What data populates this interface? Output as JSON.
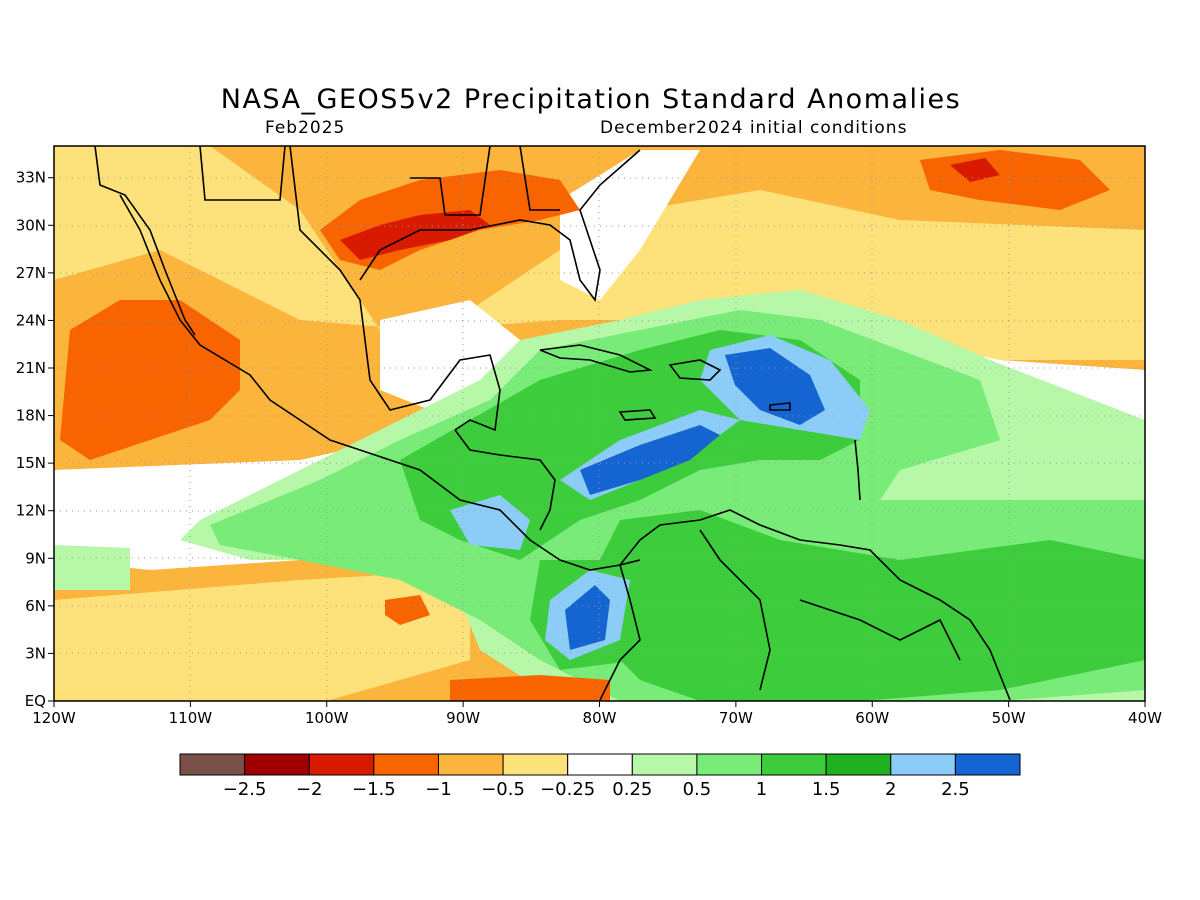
{
  "title": "NASA_GEOS5v2 Precipitation Standard Anomalies",
  "subtitle_left": "Feb2025",
  "subtitle_right": "December2024 initial conditions",
  "map": {
    "lon_range": [
      -120,
      -40
    ],
    "lat_range": [
      0,
      35
    ],
    "x_ticks": [
      {
        "value": -120,
        "label": "120W"
      },
      {
        "value": -110,
        "label": "110W"
      },
      {
        "value": -100,
        "label": "100W"
      },
      {
        "value": -90,
        "label": "90W"
      },
      {
        "value": -80,
        "label": "80W"
      },
      {
        "value": -70,
        "label": "70W"
      },
      {
        "value": -60,
        "label": "60W"
      },
      {
        "value": -50,
        "label": "50W"
      },
      {
        "value": -40,
        "label": "40W"
      }
    ],
    "y_ticks": [
      {
        "value": 0,
        "label": "EQ"
      },
      {
        "value": 3,
        "label": "3N"
      },
      {
        "value": 6,
        "label": "6N"
      },
      {
        "value": 9,
        "label": "9N"
      },
      {
        "value": 12,
        "label": "12N"
      },
      {
        "value": 15,
        "label": "15N"
      },
      {
        "value": 18,
        "label": "18N"
      },
      {
        "value": 21,
        "label": "21N"
      },
      {
        "value": 24,
        "label": "24N"
      },
      {
        "value": 27,
        "label": "27N"
      },
      {
        "value": 30,
        "label": "30N"
      },
      {
        "value": 33,
        "label": "33N"
      }
    ],
    "grid": "dotted"
  },
  "colorbar": {
    "colors": [
      "#7a5048",
      "#a00000",
      "#d81a00",
      "#f76400",
      "#fbb43c",
      "#fde27c",
      "#ffffff",
      "#b6f7a8",
      "#78eb78",
      "#3ccc3c",
      "#1fb01f",
      "#8ccdf7",
      "#1464d2"
    ],
    "labels": [
      "−2.5",
      "−2",
      "−1.5",
      "−1",
      "−0.5",
      "−0.25",
      "0.25",
      "0.5",
      "1",
      "1.5",
      "2",
      "2.5"
    ]
  },
  "colors": {
    "land_line": "#000000",
    "frame": "#000000"
  }
}
